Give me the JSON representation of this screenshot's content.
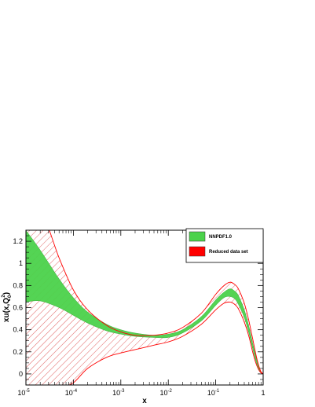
{
  "chart_data": {
    "type": "area",
    "xlabel": "x",
    "ylabel": "xu(x,Q0^2)",
    "x_scale": "log",
    "xlim": [
      1e-05,
      1
    ],
    "ylim": [
      -0.1,
      1.3
    ],
    "x_ticks": [
      {
        "value": 1e-05,
        "label": "10",
        "exp": "-5"
      },
      {
        "value": 0.0001,
        "label": "10",
        "exp": "-4"
      },
      {
        "value": 0.001,
        "label": "10",
        "exp": "-3"
      },
      {
        "value": 0.01,
        "label": "10",
        "exp": "-2"
      },
      {
        "value": 0.1,
        "label": "10",
        "exp": "-1"
      },
      {
        "value": 1,
        "label": "1",
        "exp": ""
      }
    ],
    "y_ticks": [
      0,
      0.2,
      0.4,
      0.6,
      0.8,
      1,
      1.2
    ],
    "legend_position": "top-right",
    "series": [
      {
        "name": "NNPDF1.0",
        "color": "#4bd24b",
        "fill": "solid",
        "x": [
          1e-05,
          2e-05,
          5e-05,
          0.0001,
          0.0002,
          0.0005,
          0.001,
          0.002,
          0.005,
          0.01,
          0.02,
          0.05,
          0.1,
          0.15,
          0.2,
          0.25,
          0.3,
          0.4,
          0.5,
          0.6,
          0.7,
          0.8,
          0.9,
          1
        ],
        "lower": [
          0.65,
          0.66,
          0.6,
          0.53,
          0.46,
          0.39,
          0.36,
          0.34,
          0.33,
          0.33,
          0.37,
          0.48,
          0.62,
          0.69,
          0.7,
          0.68,
          0.63,
          0.51,
          0.37,
          0.23,
          0.12,
          0.05,
          0.01,
          0.0
        ],
        "upper": [
          1.3,
          1.12,
          0.86,
          0.69,
          0.56,
          0.45,
          0.4,
          0.37,
          0.35,
          0.36,
          0.4,
          0.52,
          0.67,
          0.74,
          0.77,
          0.75,
          0.71,
          0.58,
          0.43,
          0.28,
          0.16,
          0.07,
          0.02,
          0.0
        ]
      },
      {
        "name": "Reduced data set",
        "color": "#ff0000",
        "fill": "hatched",
        "x": [
          1e-05,
          2e-05,
          5e-05,
          0.0001,
          0.0002,
          0.0005,
          0.001,
          0.002,
          0.005,
          0.01,
          0.02,
          0.05,
          0.1,
          0.15,
          0.2,
          0.25,
          0.3,
          0.4,
          0.5,
          0.6,
          0.7,
          0.8,
          0.9,
          1
        ],
        "lower": [
          -0.3,
          -0.25,
          -0.14,
          -0.08,
          0.05,
          0.15,
          0.19,
          0.22,
          0.26,
          0.29,
          0.34,
          0.45,
          0.58,
          0.64,
          0.65,
          0.63,
          0.59,
          0.47,
          0.34,
          0.2,
          0.1,
          0.04,
          0.01,
          0.0
        ],
        "upper": [
          1.5,
          1.5,
          1.05,
          0.76,
          0.58,
          0.44,
          0.38,
          0.35,
          0.35,
          0.37,
          0.42,
          0.55,
          0.72,
          0.8,
          0.83,
          0.81,
          0.77,
          0.64,
          0.48,
          0.32,
          0.18,
          0.08,
          0.02,
          0.0
        ]
      }
    ]
  }
}
